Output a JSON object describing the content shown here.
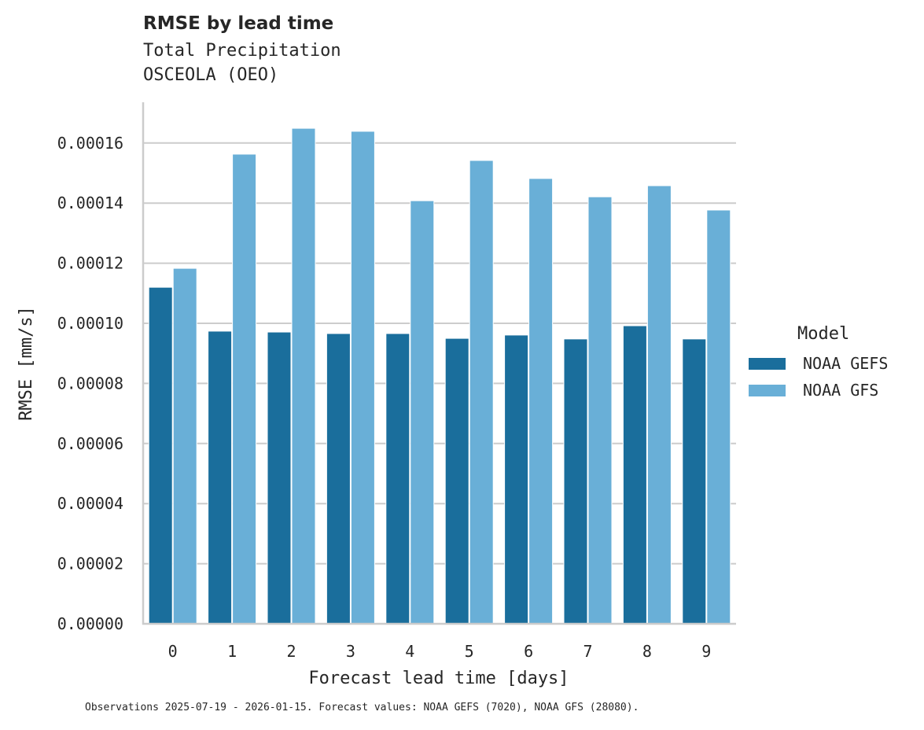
{
  "header": {
    "title": "RMSE by lead time",
    "subtitle_line1": "Total Precipitation",
    "subtitle_line2": "OSCEOLA (OEO)"
  },
  "legend": {
    "title": "Model",
    "items": [
      {
        "label": "NOAA GEFS",
        "color": "#1a6e9c"
      },
      {
        "label": "NOAA GFS",
        "color": "#69afd7"
      }
    ]
  },
  "footnote": "Observations 2025-07-19 - 2026-01-15. Forecast values: NOAA GEFS (7020), NOAA GFS (28080).",
  "chart_data": {
    "type": "bar",
    "title": "RMSE by lead time",
    "subtitle": "Total Precipitation — OSCEOLA (OEO)",
    "xlabel": "Forecast lead time [days]",
    "ylabel": "RMSE [mm/s]",
    "categories": [
      "0",
      "1",
      "2",
      "3",
      "4",
      "5",
      "6",
      "7",
      "8",
      "9"
    ],
    "series": [
      {
        "name": "NOAA GEFS",
        "color": "#1a6e9c",
        "values": [
          0.000112,
          9.74e-05,
          9.71e-05,
          9.66e-05,
          9.66e-05,
          9.5e-05,
          9.61e-05,
          9.48e-05,
          9.92e-05,
          9.48e-05
        ]
      },
      {
        "name": "NOAA GFS",
        "color": "#69afd7",
        "values": [
          0.0001183,
          0.0001563,
          0.0001649,
          0.0001639,
          0.0001408,
          0.0001542,
          0.0001482,
          0.0001421,
          0.0001458,
          0.0001377
        ]
      }
    ],
    "yticks": [
      "0.00000",
      "0.00002",
      "0.00004",
      "0.00006",
      "0.00008",
      "0.00010",
      "0.00012",
      "0.00014",
      "0.00016"
    ],
    "ylim": [
      0,
      0.000174
    ],
    "grid": "horizontal",
    "legend_position": "right",
    "legend_title": "Model"
  }
}
